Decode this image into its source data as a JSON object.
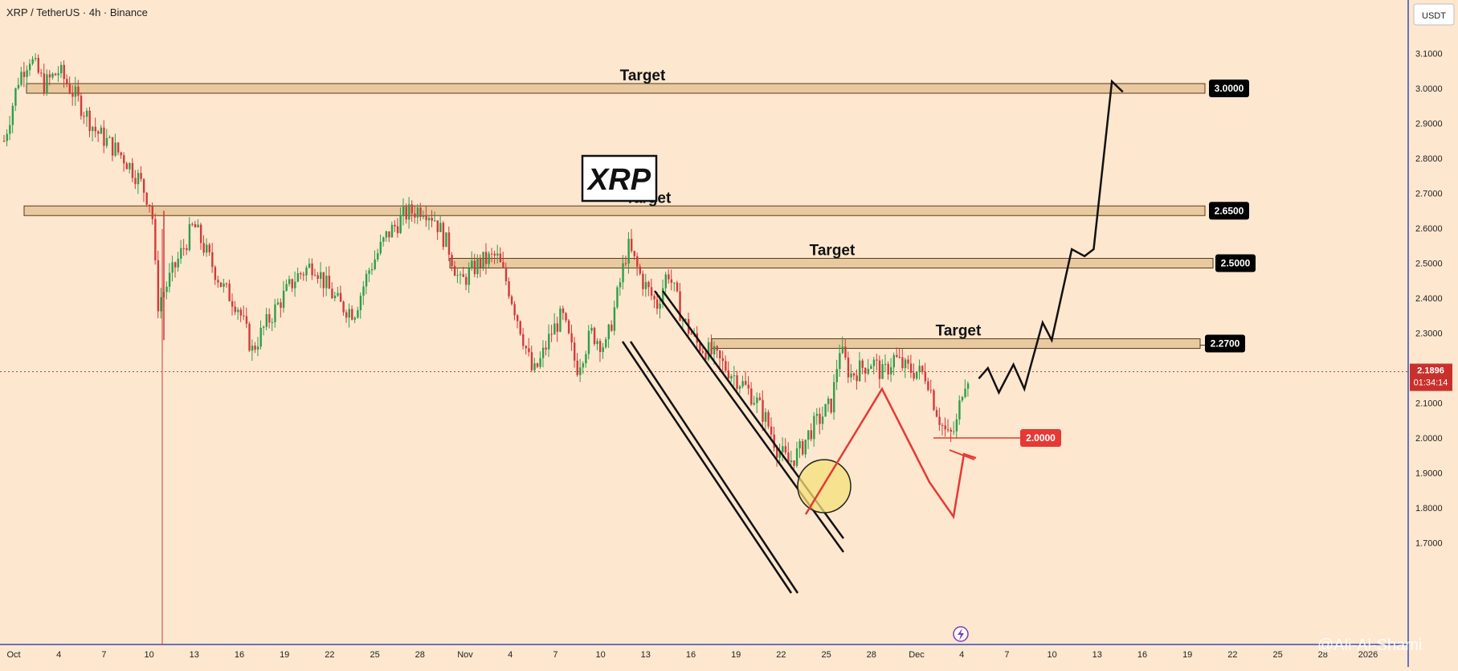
{
  "header": {
    "symbol_line": "XRP / TetherUS · 4h · Binance",
    "currency": "USDT"
  },
  "title_box": "XRP",
  "watermark": "@Ali-Al-Shami",
  "colors": {
    "background": "#fde7cf",
    "bull": "#2e9e4a",
    "bear": "#d23a3a",
    "zone_fill": "#e9c9a0",
    "zone_stroke": "#5a3a1a",
    "price_badge": "#c9302c",
    "stop_badge": "#e53935",
    "highlight_circle": "#f4e07a"
  },
  "chart_data": {
    "type": "candlestick",
    "timeframe": "4h",
    "ylim": [
      1.68,
      3.14
    ],
    "y_ticks": [
      "3.1000",
      "3.0000",
      "2.9000",
      "2.8000",
      "2.7000",
      "2.6000",
      "2.5000",
      "2.4000",
      "2.3000",
      "2.2000",
      "2.1000",
      "2.0000",
      "1.9000",
      "1.8000",
      "1.7000"
    ],
    "x_ticks": [
      "Oct",
      "4",
      "7",
      "10",
      "13",
      "16",
      "19",
      "22",
      "25",
      "28",
      "Nov",
      "4",
      "7",
      "10",
      "13",
      "16",
      "19",
      "22",
      "25",
      "28",
      "Dec",
      "4",
      "7",
      "10",
      "13",
      "16",
      "19",
      "22",
      "25",
      "28",
      "2026"
    ],
    "current_price": {
      "value": "2.1896",
      "countdown": "01:34:14"
    },
    "price_path": [
      [
        0,
        2.85
      ],
      [
        0.8,
        3.03
      ],
      [
        1.4,
        3.09
      ],
      [
        2.2,
        3.01
      ],
      [
        3.0,
        3.05
      ],
      [
        4.0,
        2.97
      ],
      [
        5.0,
        2.88
      ],
      [
        5.8,
        2.84
      ],
      [
        6.6,
        2.8
      ],
      [
        7.4,
        2.74
      ],
      [
        8.1,
        2.66
      ],
      [
        8.4,
        2.38
      ],
      [
        9.2,
        2.47
      ],
      [
        10.4,
        2.61
      ],
      [
        11.0,
        2.54
      ],
      [
        12.0,
        2.43
      ],
      [
        12.8,
        2.38
      ],
      [
        13.6,
        2.25
      ],
      [
        14.2,
        2.31
      ],
      [
        15.0,
        2.38
      ],
      [
        16.0,
        2.46
      ],
      [
        17.0,
        2.5
      ],
      [
        17.6,
        2.44
      ],
      [
        18.4,
        2.38
      ],
      [
        19.2,
        2.36
      ],
      [
        20.0,
        2.48
      ],
      [
        21.0,
        2.58
      ],
      [
        22.0,
        2.64
      ],
      [
        23.0,
        2.66
      ],
      [
        23.6,
        2.63
      ],
      [
        24.4,
        2.54
      ],
      [
        25.0,
        2.44
      ],
      [
        26.0,
        2.5
      ],
      [
        27.0,
        2.52
      ],
      [
        27.6,
        2.44
      ],
      [
        28.4,
        2.3
      ],
      [
        29.0,
        2.18
      ],
      [
        29.4,
        2.22
      ],
      [
        30.0,
        2.3
      ],
      [
        30.6,
        2.35
      ],
      [
        31.4,
        2.2
      ],
      [
        32.2,
        2.3
      ],
      [
        33.0,
        2.26
      ],
      [
        33.6,
        2.4
      ],
      [
        34.2,
        2.55
      ],
      [
        35.0,
        2.45
      ],
      [
        35.8,
        2.38
      ],
      [
        36.4,
        2.48
      ],
      [
        37.2,
        2.34
      ],
      [
        38.0,
        2.27
      ],
      [
        38.8,
        2.24
      ],
      [
        39.6,
        2.2
      ],
      [
        40.4,
        2.16
      ],
      [
        41.2,
        2.11
      ],
      [
        41.8,
        2.05
      ],
      [
        42.4,
        1.97
      ],
      [
        43.0,
        1.93
      ],
      [
        43.6,
        1.96
      ],
      [
        44.2,
        2.02
      ],
      [
        44.8,
        2.06
      ],
      [
        45.4,
        2.1
      ],
      [
        45.8,
        2.26
      ],
      [
        46.4,
        2.18
      ],
      [
        47.0,
        2.2
      ],
      [
        47.6,
        2.22
      ],
      [
        48.2,
        2.18
      ],
      [
        48.8,
        2.23
      ],
      [
        49.4,
        2.2
      ],
      [
        50.0,
        2.19
      ],
      [
        50.6,
        2.18
      ],
      [
        51.0,
        2.1
      ],
      [
        51.4,
        2.04
      ],
      [
        51.8,
        2.0
      ],
      [
        52.2,
        2.03
      ],
      [
        52.6,
        2.16
      ],
      [
        53.0,
        2.19
      ]
    ],
    "targets": [
      {
        "label": "Target",
        "value": "3.0000",
        "price": 3.0
      },
      {
        "label": "Target",
        "value": "2.6500",
        "price": 2.65
      },
      {
        "label": "Target",
        "value": "2.5000",
        "price": 2.5
      },
      {
        "label": "Target",
        "value": "2.2700",
        "price": 2.27
      }
    ],
    "stop": {
      "value": "2.0000",
      "price": 2.0
    },
    "projection_path": [
      [
        53.5,
        2.17
      ],
      [
        54.0,
        2.2
      ],
      [
        54.6,
        2.13
      ],
      [
        55.4,
        2.21
      ],
      [
        56.0,
        2.14
      ],
      [
        57.0,
        2.33
      ],
      [
        57.5,
        2.28
      ],
      [
        58.6,
        2.54
      ],
      [
        59.3,
        2.52
      ],
      [
        59.8,
        2.54
      ],
      [
        60.8,
        3.02
      ],
      [
        61.4,
        2.99
      ]
    ]
  }
}
